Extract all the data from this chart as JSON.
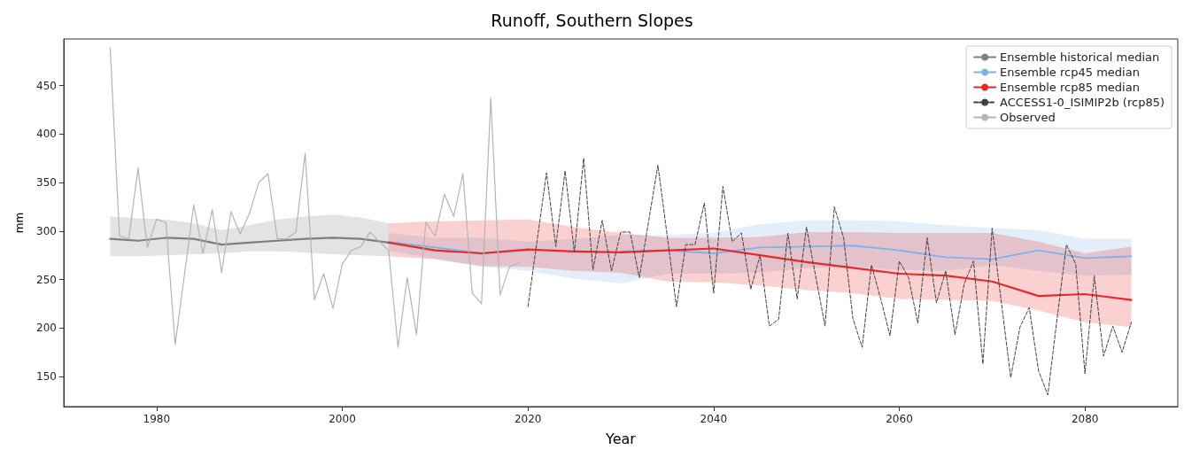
{
  "chart_data": {
    "type": "line",
    "title": "Runoff, Southern Slopes",
    "xlabel": "Year",
    "ylabel": "mm",
    "xlim": [
      1970,
      2090
    ],
    "xticks": [
      1980,
      2000,
      2020,
      2040,
      2060,
      2080
    ],
    "ylim": [
      119,
      498
    ],
    "yticks": [
      150,
      200,
      250,
      300,
      350,
      400,
      450
    ],
    "grid": false,
    "legend": "top right",
    "marker": "none",
    "series": [
      {
        "name": "Ensemble historical median",
        "color": "#7f7f7f",
        "x": [
          1975,
          1978,
          1981,
          1984,
          1987,
          1990,
          1993,
          1996,
          1999,
          2002,
          2005
        ],
        "values": [
          292,
          290,
          293,
          292,
          286,
          288,
          290,
          292,
          293,
          292,
          288
        ],
        "upper": [
          315,
          313,
          312,
          308,
          301,
          306,
          312,
          315,
          317,
          314,
          308
        ],
        "lower": [
          274,
          274,
          275,
          276,
          277,
          279,
          279,
          278,
          276,
          275,
          274
        ]
      },
      {
        "name": "Ensemble rcp45 median",
        "color": "#7fb2e8",
        "x": [
          2005,
          2010,
          2015,
          2020,
          2025,
          2030,
          2035,
          2040,
          2045,
          2050,
          2055,
          2060,
          2065,
          2070,
          2075,
          2080,
          2085
        ],
        "values": [
          289,
          283,
          277,
          280,
          null,
          279,
          280,
          277,
          283,
          284,
          285,
          280,
          273,
          271,
          280,
          272,
          274
        ],
        "upper": [
          298,
          293,
          293,
          289,
          292,
          296,
          296,
          298,
          307,
          311,
          311,
          310,
          306,
          303,
          301,
          292,
          292
        ],
        "lower": [
          280,
          271,
          263,
          259,
          251,
          246,
          256,
          256,
          257,
          262,
          263,
          260,
          259,
          265,
          259,
          254,
          255
        ]
      },
      {
        "name": "Ensemble rcp85 median",
        "color": "#e8282b",
        "x": [
          2005,
          2010,
          2015,
          2020,
          2025,
          2030,
          2035,
          2040,
          2045,
          2050,
          2055,
          2060,
          2065,
          2070,
          2075,
          2080,
          2085
        ],
        "values": [
          288,
          280,
          277,
          281,
          279,
          278,
          280,
          282,
          275,
          268,
          262,
          256,
          254,
          248,
          233,
          235,
          229
        ],
        "upper": [
          308,
          310,
          311,
          312,
          304,
          298,
          293,
          293,
          294,
          299,
          299,
          298,
          298,
          298,
          289,
          277,
          284
        ],
        "lower": [
          274,
          271,
          264,
          263,
          259,
          257,
          248,
          247,
          244,
          239,
          236,
          230,
          229,
          228,
          218,
          206,
          201
        ]
      },
      {
        "name": "ACCESS1-0_ISIMIP2b (rcp85)",
        "color": "#404040",
        "line_style": "dashed",
        "x": [
          2020,
          2021,
          2022,
          2023,
          2024,
          2025,
          2026,
          2027,
          2028,
          2029,
          2030,
          2031,
          2032,
          2033,
          2034,
          2035,
          2036,
          2037,
          2038,
          2039,
          2040,
          2041,
          2042,
          2043,
          2044,
          2045,
          2046,
          2047,
          2048,
          2049,
          2050,
          2051,
          2052,
          2053,
          2054,
          2055,
          2056,
          2057,
          2058,
          2059,
          2060,
          2061,
          2062,
          2063,
          2064,
          2065,
          2066,
          2067,
          2068,
          2069,
          2070,
          2071,
          2072,
          2073,
          2074,
          2075,
          2076,
          2077,
          2078,
          2079,
          2080,
          2081,
          2082,
          2083,
          2084,
          2085
        ],
        "values": [
          222,
          291,
          360,
          284,
          362,
          278,
          375,
          260,
          311,
          259,
          299,
          299,
          252,
          310,
          368,
          295,
          222,
          286,
          286,
          329,
          236,
          346,
          289,
          298,
          240,
          275,
          202,
          209,
          298,
          230,
          304,
          253,
          202,
          325,
          293,
          210,
          180,
          265,
          230,
          192,
          269,
          252,
          205,
          293,
          226,
          259,
          193,
          246,
          269,
          163,
          303,
          226,
          149,
          201,
          221,
          156,
          131,
          210,
          286,
          266,
          153,
          254,
          171,
          202,
          175,
          206
        ]
      },
      {
        "name": "Observed",
        "color": "#b4b4b4",
        "x": [
          1975,
          1976,
          1977,
          1978,
          1979,
          1980,
          1981,
          1982,
          1983,
          1984,
          1985,
          1986,
          1987,
          1988,
          1989,
          1990,
          1991,
          1992,
          1993,
          1994,
          1995,
          1996,
          1997,
          1998,
          1999,
          2000,
          2001,
          2002,
          2003,
          2004,
          2005,
          2006,
          2007,
          2008,
          2009,
          2010,
          2011,
          2012,
          2013,
          2014,
          2015,
          2016,
          2017,
          2018,
          2019
        ],
        "values": [
          489,
          295,
          292,
          365,
          283,
          312,
          309,
          183,
          255,
          327,
          277,
          322,
          257,
          320,
          297,
          318,
          350,
          359,
          292,
          292,
          299,
          380,
          229,
          256,
          220,
          266,
          280,
          284,
          299,
          289,
          280,
          180,
          252,
          193,
          309,
          295,
          338,
          315,
          359,
          236,
          225,
          437,
          234,
          263,
          267
        ]
      }
    ]
  }
}
